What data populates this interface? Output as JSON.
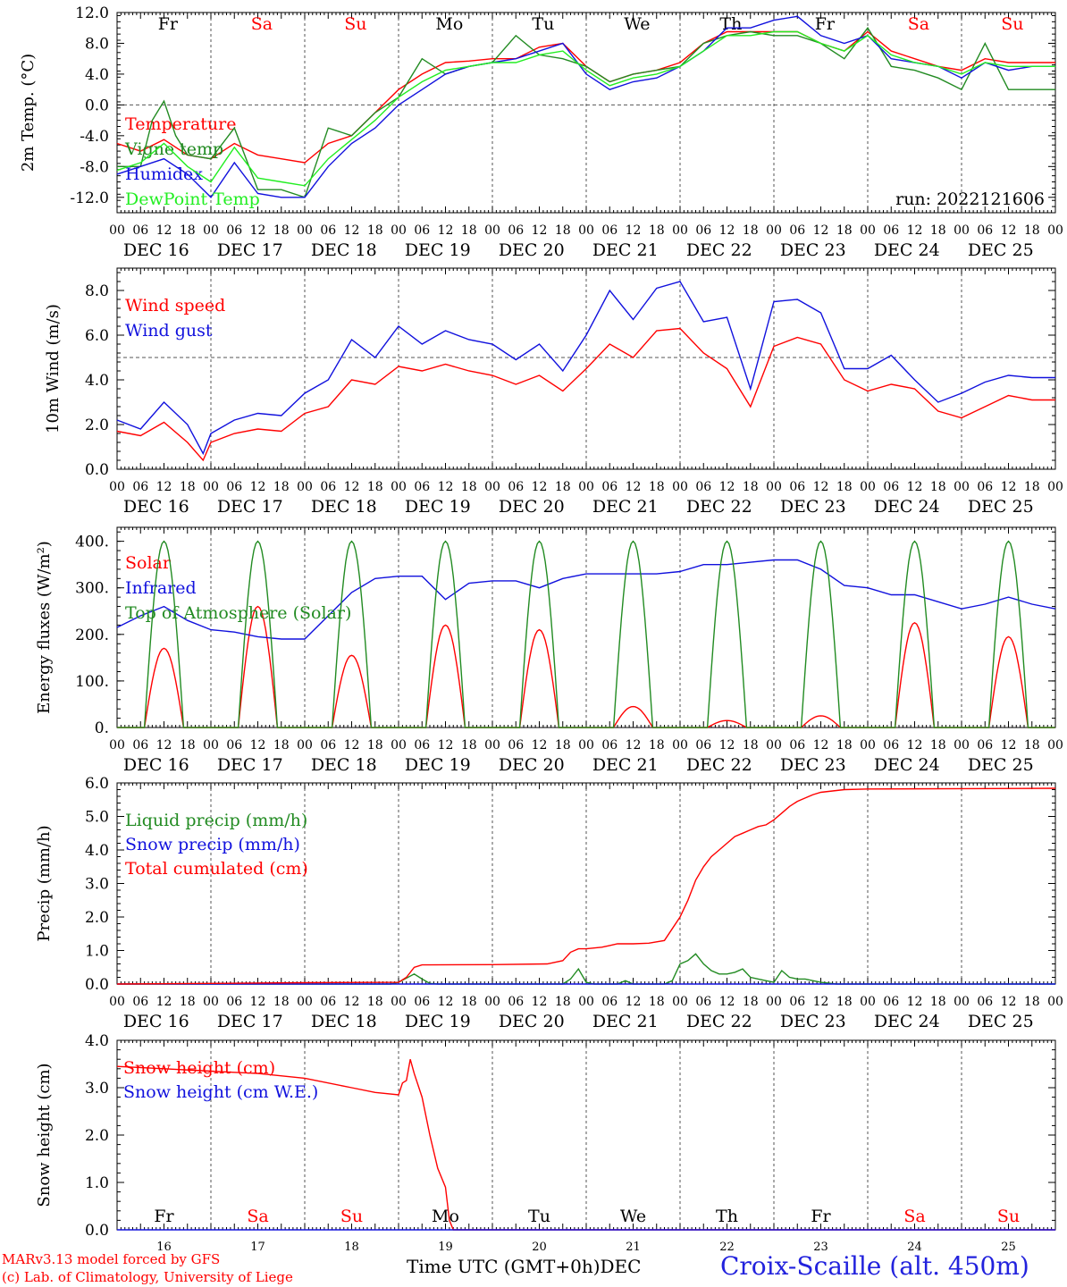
{
  "footer": {
    "model_line": "MARv3.13 model forced by GFS",
    "lab_line": "(c) Lab. of Climatology, University of Liege",
    "time_axis_title": "Time UTC (GMT+0h)",
    "month": "DEC",
    "station": "Croix-Scaille (alt. 450m)"
  },
  "colors": {
    "red": "#ff0000",
    "green": "#228b22",
    "blue": "#1111dd",
    "lightgreen": "#22ee22",
    "grid": "#555555"
  },
  "time_axis": {
    "hour_ticks": [
      "00",
      "06",
      "12",
      "18"
    ],
    "end_tick": "00",
    "date_labels": [
      "DEC 16",
      "DEC 17",
      "DEC 18",
      "DEC 19",
      "DEC 20",
      "DEC 21",
      "DEC 22",
      "DEC 23",
      "DEC 24",
      "DEC 25"
    ],
    "weekdays": [
      "Fr",
      "Sa",
      "Su",
      "Mo",
      "Tu",
      "We",
      "Th",
      "Fr",
      "Sa",
      "Su"
    ],
    "weekday_colors": [
      "#000000",
      "#ff0000",
      "#ff0000",
      "#000000",
      "#000000",
      "#000000",
      "#000000",
      "#000000",
      "#ff0000",
      "#ff0000"
    ],
    "day_numbers": [
      "16",
      "17",
      "18",
      "19",
      "20",
      "21",
      "22",
      "23",
      "24",
      "25"
    ]
  },
  "chart_data": [
    {
      "type": "line",
      "ylabel": "2m Temp. (°C)",
      "ylim": [
        -14,
        12
      ],
      "yticks": [
        12,
        8,
        4,
        0,
        -4,
        -8,
        -12
      ],
      "ytick_labels": [
        "12.0",
        "8.0",
        "4.0",
        "0.0",
        "-4.0",
        "-8.0",
        "-12.0"
      ],
      "ref_line": 0,
      "show_weekdays": true,
      "annotation": "run: 2022121606",
      "x_unit": "hours since 2022-12-16 00 UTC",
      "series": [
        {
          "name": "Temperature",
          "color": "#ff0000",
          "x": [
            0,
            6,
            12,
            18,
            24,
            30,
            36,
            42,
            48,
            54,
            60,
            66,
            72,
            78,
            84,
            90,
            96,
            102,
            108,
            114,
            120,
            126,
            132,
            138,
            144,
            150,
            156,
            162,
            168,
            174,
            180,
            186,
            192,
            198,
            204,
            210,
            216,
            222,
            228,
            234,
            240
          ],
          "y": [
            -5,
            -6,
            -4.5,
            -6.5,
            -7,
            -5,
            -6.5,
            -7,
            -7.5,
            -5,
            -4,
            -1,
            2,
            4,
            5.5,
            5.7,
            6,
            6,
            7.5,
            8,
            5,
            3,
            4,
            4.5,
            5.5,
            8,
            9.5,
            9.5,
            9.5,
            9.5,
            8,
            7,
            9.5,
            7,
            6,
            5,
            4.5,
            6,
            5.5,
            5.5,
            5.5
          ]
        },
        {
          "name": "Vigne temp",
          "color": "#228b22",
          "x": [
            0,
            6,
            9,
            12,
            15,
            18,
            24,
            30,
            36,
            42,
            48,
            54,
            60,
            66,
            72,
            78,
            84,
            90,
            96,
            102,
            108,
            114,
            120,
            126,
            132,
            138,
            144,
            150,
            156,
            162,
            168,
            174,
            180,
            186,
            192,
            198,
            204,
            210,
            216,
            222,
            228,
            234,
            240
          ],
          "y": [
            -8,
            -8,
            -2,
            0.5,
            -4,
            -6.5,
            -7,
            -3,
            -11,
            -11,
            -12,
            -3,
            -4,
            -1,
            1,
            6,
            4,
            5,
            5.5,
            9,
            6.5,
            6,
            5,
            3,
            4,
            4.5,
            5,
            8,
            9,
            9.5,
            9,
            9,
            8,
            6,
            10,
            5,
            4.5,
            3.5,
            2,
            8,
            2,
            2,
            2
          ]
        },
        {
          "name": "Humidex",
          "color": "#1111dd",
          "x": [
            0,
            6,
            12,
            18,
            24,
            30,
            36,
            42,
            48,
            54,
            60,
            66,
            72,
            78,
            84,
            90,
            96,
            102,
            108,
            114,
            120,
            126,
            132,
            138,
            144,
            150,
            156,
            162,
            168,
            174,
            180,
            186,
            192,
            198,
            204,
            210,
            216,
            222,
            228,
            234,
            240
          ],
          "y": [
            -9,
            -8,
            -7,
            -9,
            -12,
            -7.5,
            -11.5,
            -12,
            -12,
            -8,
            -5,
            -3,
            0,
            2,
            4,
            5,
            5.5,
            6,
            7,
            8,
            4,
            2,
            3,
            3.5,
            5,
            7,
            10,
            10,
            11,
            11.5,
            9,
            8,
            9,
            6,
            5.5,
            5,
            3.5,
            5.5,
            4.5,
            5,
            5
          ]
        },
        {
          "name": "DewPoint Temp",
          "color": "#22ee22",
          "x": [
            0,
            6,
            12,
            18,
            24,
            30,
            36,
            42,
            48,
            54,
            60,
            66,
            72,
            78,
            84,
            90,
            96,
            102,
            108,
            114,
            120,
            126,
            132,
            138,
            144,
            150,
            156,
            162,
            168,
            174,
            180,
            186,
            192,
            198,
            204,
            210,
            216,
            222,
            228,
            234,
            240
          ],
          "y": [
            -8.5,
            -7.5,
            -5,
            -8,
            -10,
            -5.5,
            -9.5,
            -10,
            -10.5,
            -7,
            -4.5,
            -2,
            1,
            3,
            4.5,
            5,
            5.5,
            5.5,
            6.5,
            7,
            4.5,
            2.5,
            3.5,
            4,
            5,
            7,
            9,
            9,
            9.5,
            9.5,
            8,
            7,
            9,
            6.5,
            5.5,
            5,
            4,
            5.5,
            5,
            5,
            5
          ]
        }
      ]
    },
    {
      "type": "line",
      "ylabel": "10m Wind (m/s)",
      "ylim": [
        0,
        9
      ],
      "yticks": [
        8,
        6,
        4,
        2,
        0
      ],
      "ytick_labels": [
        "8.0",
        "6.0",
        "4.0",
        "2.0",
        "0.0"
      ],
      "ref_line": 5,
      "x_unit": "hours since 2022-12-16 00 UTC",
      "series": [
        {
          "name": "Wind speed",
          "color": "#ff0000",
          "x": [
            0,
            6,
            12,
            18,
            22,
            24,
            30,
            36,
            42,
            48,
            54,
            60,
            66,
            72,
            78,
            84,
            90,
            96,
            102,
            108,
            114,
            120,
            126,
            132,
            138,
            144,
            150,
            156,
            162,
            168,
            174,
            180,
            186,
            192,
            198,
            204,
            210,
            216,
            222,
            228,
            234,
            240
          ],
          "y": [
            1.7,
            1.5,
            2.1,
            1.2,
            0.4,
            1.2,
            1.6,
            1.8,
            1.7,
            2.5,
            2.8,
            4,
            3.8,
            4.6,
            4.4,
            4.7,
            4.4,
            4.2,
            3.8,
            4.2,
            3.5,
            4.5,
            5.6,
            5,
            6.2,
            6.3,
            5.2,
            4.5,
            2.8,
            5.5,
            5.9,
            5.6,
            4,
            3.5,
            3.8,
            3.6,
            2.6,
            2.3,
            2.8,
            3.3,
            3.1,
            3.1
          ]
        },
        {
          "name": "Wind gust",
          "color": "#1111dd",
          "x": [
            0,
            6,
            12,
            18,
            22,
            24,
            30,
            36,
            42,
            48,
            54,
            60,
            66,
            72,
            78,
            84,
            90,
            96,
            102,
            108,
            114,
            120,
            126,
            132,
            138,
            144,
            150,
            156,
            162,
            168,
            174,
            180,
            186,
            192,
            198,
            204,
            210,
            216,
            222,
            228,
            234,
            240
          ],
          "y": [
            2.2,
            1.8,
            3,
            2,
            0.7,
            1.6,
            2.2,
            2.5,
            2.4,
            3.4,
            4,
            5.8,
            5,
            6.4,
            5.6,
            6.2,
            5.8,
            5.6,
            4.9,
            5.6,
            4.4,
            6,
            8,
            6.7,
            8.1,
            8.4,
            6.6,
            6.8,
            3.6,
            7.5,
            7.6,
            7,
            4.5,
            4.5,
            5.1,
            4,
            3,
            3.4,
            3.9,
            4.2,
            4.1,
            4.1
          ]
        }
      ]
    },
    {
      "type": "line",
      "ylabel": "Energy fluxes (W/m²)",
      "ylim": [
        0,
        430
      ],
      "yticks": [
        400,
        300,
        200,
        100,
        0
      ],
      "ytick_labels": [
        "400.",
        "300.",
        "200.",
        "100.",
        "0."
      ],
      "x_unit": "hours since 2022-12-16 00 UTC",
      "daily_peak_hour": 12,
      "series": [
        {
          "name": "Solar",
          "color": "#ff0000",
          "kind": "daily",
          "daily_peaks": [
            170,
            260,
            155,
            220,
            210,
            45,
            15,
            25,
            225,
            195
          ]
        },
        {
          "name": "Infrared",
          "color": "#1111dd",
          "x": [
            0,
            6,
            12,
            18,
            24,
            30,
            36,
            42,
            48,
            54,
            60,
            66,
            72,
            78,
            84,
            90,
            96,
            102,
            108,
            114,
            120,
            126,
            132,
            138,
            144,
            150,
            156,
            162,
            168,
            174,
            180,
            186,
            192,
            198,
            204,
            210,
            216,
            222,
            228,
            234,
            240
          ],
          "y": [
            215,
            240,
            260,
            230,
            210,
            205,
            195,
            190,
            190,
            240,
            290,
            320,
            325,
            325,
            275,
            310,
            315,
            315,
            300,
            320,
            330,
            330,
            330,
            330,
            335,
            350,
            350,
            355,
            360,
            360,
            340,
            305,
            300,
            285,
            285,
            270,
            255,
            265,
            280,
            265,
            255
          ]
        },
        {
          "name": "Top of Atmosphere (Solar)",
          "color": "#228b22",
          "kind": "daily",
          "daily_peaks": [
            400,
            400,
            400,
            400,
            400,
            400,
            400,
            400,
            400,
            400
          ]
        }
      ]
    },
    {
      "type": "line",
      "ylabel": "Precip (mm/h)",
      "ylim": [
        0,
        6
      ],
      "yticks": [
        6,
        5,
        4,
        3,
        2,
        1,
        0
      ],
      "ytick_labels": [
        "6.0",
        "5.0",
        "4.0",
        "3.0",
        "2.0",
        "1.0",
        "0.0"
      ],
      "x_unit": "hours since 2022-12-16 00 UTC",
      "series": [
        {
          "name": "Liquid precip (mm/h)",
          "color": "#228b22",
          "x": [
            0,
            70,
            72,
            76,
            78,
            80,
            82,
            84,
            114,
            116,
            118,
            120,
            122,
            124,
            128,
            130,
            132,
            140,
            142,
            144,
            146,
            148,
            150,
            152,
            154,
            156,
            158,
            160,
            162,
            164,
            166,
            168,
            170,
            172,
            174,
            176,
            178,
            180,
            184,
            240
          ],
          "y": [
            0,
            0,
            0.05,
            0.3,
            0.15,
            0.02,
            0,
            0,
            0,
            0.15,
            0.45,
            0.05,
            0,
            0,
            0,
            0.1,
            0,
            0,
            0.1,
            0.6,
            0.7,
            0.9,
            0.6,
            0.4,
            0.3,
            0.3,
            0.35,
            0.45,
            0.2,
            0.15,
            0.1,
            0.05,
            0.4,
            0.2,
            0.15,
            0.15,
            0.1,
            0.05,
            0,
            0
          ]
        },
        {
          "name": "Snow precip (mm/h)",
          "color": "#1111dd",
          "x": [
            0,
            240
          ],
          "y": [
            0,
            0
          ]
        },
        {
          "name": "Total cumulated (cm)",
          "color": "#ff0000",
          "x": [
            0,
            24,
            48,
            72,
            74,
            76,
            78,
            80,
            96,
            110,
            114,
            116,
            118,
            120,
            124,
            126,
            128,
            132,
            136,
            140,
            144,
            146,
            148,
            150,
            152,
            154,
            156,
            158,
            160,
            162,
            164,
            166,
            168,
            170,
            172,
            174,
            176,
            178,
            180,
            186,
            192,
            216,
            240
          ],
          "y": [
            0,
            0.02,
            0.04,
            0.05,
            0.2,
            0.5,
            0.57,
            0.57,
            0.58,
            0.6,
            0.7,
            0.95,
            1.05,
            1.05,
            1.1,
            1.15,
            1.2,
            1.2,
            1.22,
            1.3,
            2.0,
            2.5,
            3.1,
            3.5,
            3.8,
            4.0,
            4.2,
            4.4,
            4.5,
            4.6,
            4.7,
            4.75,
            4.9,
            5.1,
            5.3,
            5.45,
            5.55,
            5.65,
            5.72,
            5.8,
            5.82,
            5.83,
            5.84
          ]
        }
      ]
    },
    {
      "type": "line",
      "ylabel": "Snow height (cm)",
      "ylim": [
        0,
        4
      ],
      "yticks": [
        4,
        3,
        2,
        1,
        0
      ],
      "ytick_labels": [
        "4.0",
        "3.0",
        "2.0",
        "1.0",
        "0.0"
      ],
      "show_weekdays_bottom": true,
      "x_unit": "hours since 2022-12-16 00 UTC",
      "series": [
        {
          "name": "Snow height (cm)",
          "color": "#ff0000",
          "x": [
            0,
            12,
            24,
            36,
            48,
            60,
            66,
            72,
            73,
            74,
            75,
            76,
            78,
            80,
            82,
            84,
            85,
            86,
            240
          ],
          "y": [
            3.45,
            3.4,
            3.35,
            3.3,
            3.2,
            3.0,
            2.9,
            2.85,
            3.1,
            3.15,
            3.6,
            3.3,
            2.8,
            2.0,
            1.3,
            0.9,
            0.2,
            0,
            0
          ]
        },
        {
          "name": "Snow height (cm W.E.)",
          "color": "#1111dd",
          "x": [
            0,
            240
          ],
          "y": [
            0,
            0
          ]
        }
      ]
    }
  ]
}
